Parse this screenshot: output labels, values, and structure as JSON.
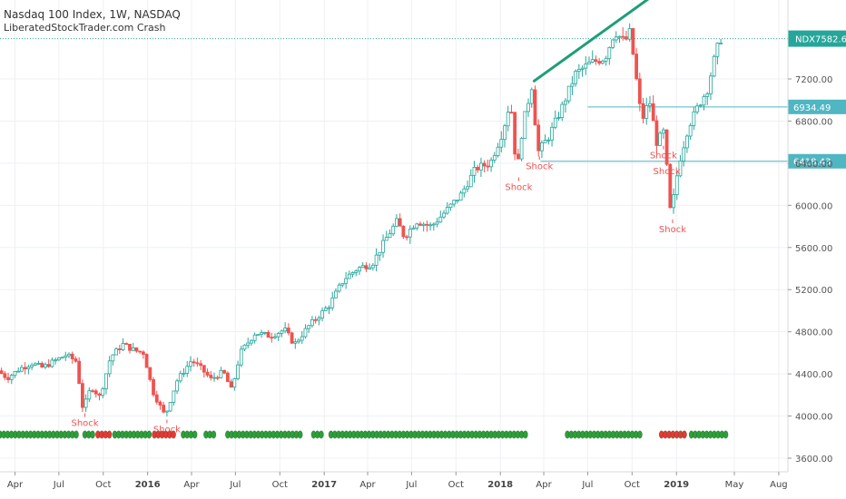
{
  "header": {
    "title": "Nasdaq 100 Index, 1W, NASDAQ",
    "indicator": "LiberatedStockTrader.com Crash"
  },
  "colors": {
    "up": "#26a69a",
    "down": "#ef5350",
    "green_dot": "#2e9e3a",
    "red_dot": "#e53935",
    "trend": "#1e9e78",
    "level": "#4fb6c2",
    "price_tag": "#26a69a"
  },
  "chart_data": {
    "type": "candlestick",
    "symbol": "NDX",
    "last_price": 7582.6,
    "last_price_label": "7582.60",
    "ylim": [
      3500,
      8000
    ],
    "y_ticks": [
      3600,
      4000,
      4400,
      4800,
      5200,
      5600,
      6000,
      6400,
      6800,
      7200
    ],
    "y_tick_labels": [
      "3600.00",
      "4000.00",
      "4400.00",
      "4800.00",
      "5200.00",
      "5600.00",
      "6000.00",
      "6400.00",
      "6800.00",
      "7200.00"
    ],
    "x_range": [
      "2015-03-01",
      "2019-08-20"
    ],
    "x_ticks": [
      {
        "date": "2015-04-01",
        "label": "Apr",
        "bold": false
      },
      {
        "date": "2015-07-01",
        "label": "Jul",
        "bold": false
      },
      {
        "date": "2015-10-01",
        "label": "Oct",
        "bold": false
      },
      {
        "date": "2016-01-01",
        "label": "2016",
        "bold": true
      },
      {
        "date": "2016-04-01",
        "label": "Apr",
        "bold": false
      },
      {
        "date": "2016-07-01",
        "label": "Jul",
        "bold": false
      },
      {
        "date": "2016-10-01",
        "label": "Oct",
        "bold": false
      },
      {
        "date": "2017-01-01",
        "label": "2017",
        "bold": true
      },
      {
        "date": "2017-04-01",
        "label": "Apr",
        "bold": false
      },
      {
        "date": "2017-07-01",
        "label": "Jul",
        "bold": false
      },
      {
        "date": "2017-10-01",
        "label": "Oct",
        "bold": false
      },
      {
        "date": "2018-01-01",
        "label": "2018",
        "bold": true
      },
      {
        "date": "2018-04-01",
        "label": "Apr",
        "bold": false
      },
      {
        "date": "2018-07-01",
        "label": "Jul",
        "bold": false
      },
      {
        "date": "2018-10-01",
        "label": "Oct",
        "bold": false
      },
      {
        "date": "2019-01-01",
        "label": "2019",
        "bold": true
      },
      {
        "date": "2019-05-01",
        "label": "May",
        "bold": false
      },
      {
        "date": "2019-08-01",
        "label": "Aug",
        "bold": false
      }
    ],
    "price_path": [
      [
        "2015-03-01",
        4430
      ],
      [
        "2015-03-20",
        4360
      ],
      [
        "2015-04-15",
        4450
      ],
      [
        "2015-05-10",
        4500
      ],
      [
        "2015-06-01",
        4460
      ],
      [
        "2015-06-25",
        4520
      ],
      [
        "2015-07-20",
        4580
      ],
      [
        "2015-08-10",
        4520
      ],
      [
        "2015-08-24",
        4060
      ],
      [
        "2015-09-10",
        4280
      ],
      [
        "2015-09-28",
        4180
      ],
      [
        "2015-10-20",
        4560
      ],
      [
        "2015-11-15",
        4680
      ],
      [
        "2015-12-10",
        4620
      ],
      [
        "2015-12-28",
        4600
      ],
      [
        "2016-01-15",
        4240
      ],
      [
        "2016-02-10",
        4000
      ],
      [
        "2016-03-05",
        4330
      ],
      [
        "2016-04-05",
        4530
      ],
      [
        "2016-04-25",
        4450
      ],
      [
        "2016-05-15",
        4350
      ],
      [
        "2016-06-10",
        4420
      ],
      [
        "2016-06-27",
        4240
      ],
      [
        "2016-07-15",
        4600
      ],
      [
        "2016-08-15",
        4790
      ],
      [
        "2016-09-15",
        4760
      ],
      [
        "2016-10-15",
        4820
      ],
      [
        "2016-11-04",
        4680
      ],
      [
        "2016-12-05",
        4860
      ],
      [
        "2017-01-15",
        5050
      ],
      [
        "2017-02-15",
        5300
      ],
      [
        "2017-03-15",
        5400
      ],
      [
        "2017-04-15",
        5450
      ],
      [
        "2017-05-15",
        5700
      ],
      [
        "2017-06-05",
        5850
      ],
      [
        "2017-06-20",
        5700
      ],
      [
        "2017-07-15",
        5850
      ],
      [
        "2017-08-15",
        5800
      ],
      [
        "2017-09-15",
        5950
      ],
      [
        "2017-10-15",
        6100
      ],
      [
        "2017-11-15",
        6350
      ],
      [
        "2017-12-15",
        6400
      ],
      [
        "2018-01-10",
        6700
      ],
      [
        "2018-01-26",
        7000
      ],
      [
        "2018-02-08",
        6300
      ],
      [
        "2018-02-20",
        6750
      ],
      [
        "2018-03-12",
        7150
      ],
      [
        "2018-03-23",
        6500
      ],
      [
        "2018-04-15",
        6650
      ],
      [
        "2018-05-10",
        6900
      ],
      [
        "2018-06-10",
        7250
      ],
      [
        "2018-07-10",
        7350
      ],
      [
        "2018-08-10",
        7400
      ],
      [
        "2018-08-30",
        7650
      ],
      [
        "2018-09-20",
        7550
      ],
      [
        "2018-10-01",
        7650
      ],
      [
        "2018-10-25",
        6800
      ],
      [
        "2018-11-10",
        7000
      ],
      [
        "2018-11-25",
        6600
      ],
      [
        "2018-12-10",
        6700
      ],
      [
        "2018-12-24",
        5900
      ],
      [
        "2019-01-10",
        6400
      ],
      [
        "2019-01-30",
        6750
      ],
      [
        "2019-02-20",
        6950
      ],
      [
        "2019-03-10",
        7100
      ],
      [
        "2019-03-25",
        7400
      ],
      [
        "2019-04-05",
        7580
      ]
    ],
    "shock_labels": [
      {
        "date": "2015-08-24",
        "price": 4060,
        "text": "Shock"
      },
      {
        "date": "2016-02-10",
        "price": 4000,
        "text": "Shock"
      },
      {
        "date": "2018-02-08",
        "price": 6300,
        "text": "Shock"
      },
      {
        "date": "2018-03-23",
        "price": 6500,
        "text": "Shock"
      },
      {
        "date": "2018-12-05",
        "price": 6600,
        "text": "Shock"
      },
      {
        "date": "2018-12-12",
        "price": 6450,
        "text": "Shock"
      },
      {
        "date": "2018-12-24",
        "price": 5900,
        "text": "Shock"
      }
    ],
    "horizontal_levels": [
      {
        "price": 6934.49,
        "label": "6934.49",
        "from": "2018-07-01"
      },
      {
        "price": 6418.43,
        "label": "6418.43",
        "from": "2018-03-25"
      }
    ],
    "trendline": {
      "from": [
        "2018-03-12",
        7180
      ],
      "to": [
        "2018-11-10",
        7980
      ]
    },
    "indicator_dots": [
      {
        "from": "2015-03-01",
        "to": "2015-08-10",
        "color": "green"
      },
      {
        "from": "2015-08-24",
        "to": "2015-09-10",
        "color": "green"
      },
      {
        "from": "2015-09-20",
        "to": "2015-10-15",
        "color": "red"
      },
      {
        "from": "2015-10-25",
        "to": "2016-01-05",
        "color": "green"
      },
      {
        "from": "2016-01-15",
        "to": "2016-03-01",
        "color": "red"
      },
      {
        "from": "2016-03-15",
        "to": "2016-04-10",
        "color": "green"
      },
      {
        "from": "2016-05-01",
        "to": "2016-05-20",
        "color": "green"
      },
      {
        "from": "2016-06-15",
        "to": "2016-11-20",
        "color": "green"
      },
      {
        "from": "2016-12-10",
        "to": "2017-01-01",
        "color": "green"
      },
      {
        "from": "2017-01-15",
        "to": "2018-03-01",
        "color": "green"
      },
      {
        "from": "2018-05-20",
        "to": "2018-10-25",
        "color": "green"
      },
      {
        "from": "2018-12-01",
        "to": "2019-01-20",
        "color": "red"
      },
      {
        "from": "2019-02-01",
        "to": "2019-04-20",
        "color": "green"
      }
    ]
  }
}
